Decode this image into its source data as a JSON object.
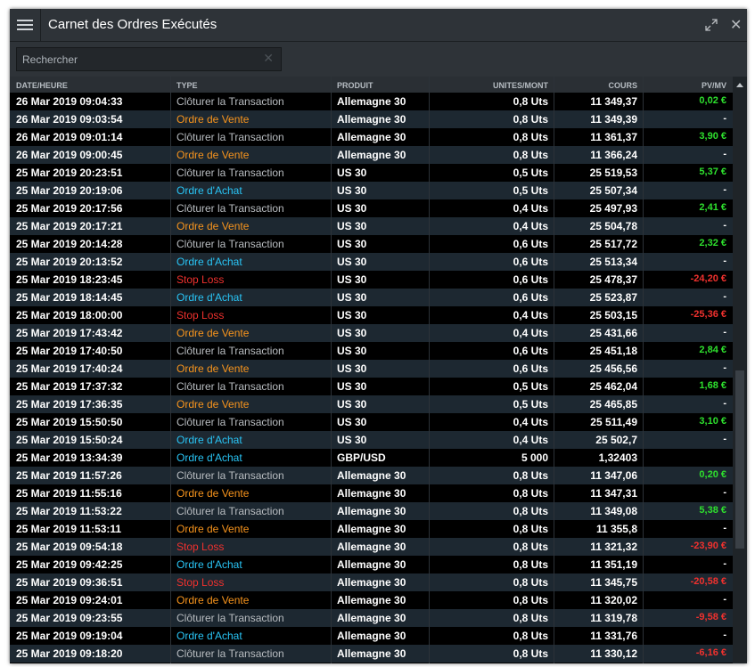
{
  "header": {
    "title": "Carnet des Ordres Exécutés"
  },
  "search": {
    "placeholder": "Rechercher"
  },
  "table": {
    "columns": [
      "DATE/HEURE",
      "TYPE",
      "PRODUIT",
      "UNITES/MONT",
      "COURS",
      "PV/MV"
    ],
    "rows": [
      {
        "date": "26 Mar 2019 09:04:33",
        "type": "Clôturer la Transaction",
        "type_color": "#b8bcc0",
        "product": "Allemagne 30",
        "units": "0,8 Uts",
        "price": "11 349,37",
        "pnl": "0,02 €",
        "pnl_color": "#2ee02e"
      },
      {
        "date": "26 Mar 2019 09:03:54",
        "type": "Ordre de Vente",
        "type_color": "#f7941d",
        "product": "Allemagne 30",
        "units": "0,8 Uts",
        "price": "11 349,39",
        "pnl": "-",
        "pnl_color": "#ffffff"
      },
      {
        "date": "26 Mar 2019 09:01:14",
        "type": "Clôturer la Transaction",
        "type_color": "#b8bcc0",
        "product": "Allemagne 30",
        "units": "0,8 Uts",
        "price": "11 361,37",
        "pnl": "3,90 €",
        "pnl_color": "#2ee02e"
      },
      {
        "date": "26 Mar 2019 09:00:45",
        "type": "Ordre de Vente",
        "type_color": "#f7941d",
        "product": "Allemagne 30",
        "units": "0,8 Uts",
        "price": "11 366,24",
        "pnl": "-",
        "pnl_color": "#ffffff"
      },
      {
        "date": "25 Mar 2019 20:23:51",
        "type": "Clôturer la Transaction",
        "type_color": "#b8bcc0",
        "product": "US 30",
        "units": "0,5 Uts",
        "price": "25 519,53",
        "pnl": "5,37 €",
        "pnl_color": "#2ee02e"
      },
      {
        "date": "25 Mar 2019 20:19:06",
        "type": "Ordre d'Achat",
        "type_color": "#29c5f6",
        "product": "US 30",
        "units": "0,5 Uts",
        "price": "25 507,34",
        "pnl": "-",
        "pnl_color": "#ffffff"
      },
      {
        "date": "25 Mar 2019 20:17:56",
        "type": "Clôturer la Transaction",
        "type_color": "#b8bcc0",
        "product": "US 30",
        "units": "0,4 Uts",
        "price": "25 497,93",
        "pnl": "2,41 €",
        "pnl_color": "#2ee02e"
      },
      {
        "date": "25 Mar 2019 20:17:21",
        "type": "Ordre de Vente",
        "type_color": "#f7941d",
        "product": "US 30",
        "units": "0,4 Uts",
        "price": "25 504,78",
        "pnl": "-",
        "pnl_color": "#ffffff"
      },
      {
        "date": "25 Mar 2019 20:14:28",
        "type": "Clôturer la Transaction",
        "type_color": "#b8bcc0",
        "product": "US 30",
        "units": "0,6 Uts",
        "price": "25 517,72",
        "pnl": "2,32 €",
        "pnl_color": "#2ee02e"
      },
      {
        "date": "25 Mar 2019 20:13:52",
        "type": "Ordre d'Achat",
        "type_color": "#29c5f6",
        "product": "US 30",
        "units": "0,6 Uts",
        "price": "25 513,34",
        "pnl": "-",
        "pnl_color": "#ffffff"
      },
      {
        "date": "25 Mar 2019 18:23:45",
        "type": "Stop Loss",
        "type_color": "#f0312e",
        "product": "US 30",
        "units": "0,6 Uts",
        "price": "25 478,37",
        "pnl": "-24,20 €",
        "pnl_color": "#f0312e"
      },
      {
        "date": "25 Mar 2019 18:14:45",
        "type": "Ordre d'Achat",
        "type_color": "#29c5f6",
        "product": "US 30",
        "units": "0,6 Uts",
        "price": "25 523,87",
        "pnl": "-",
        "pnl_color": "#ffffff"
      },
      {
        "date": "25 Mar 2019 18:00:00",
        "type": "Stop Loss",
        "type_color": "#f0312e",
        "product": "US 30",
        "units": "0,4 Uts",
        "price": "25 503,15",
        "pnl": "-25,36 €",
        "pnl_color": "#f0312e"
      },
      {
        "date": "25 Mar 2019 17:43:42",
        "type": "Ordre de Vente",
        "type_color": "#f7941d",
        "product": "US 30",
        "units": "0,4 Uts",
        "price": "25 431,66",
        "pnl": "-",
        "pnl_color": "#ffffff"
      },
      {
        "date": "25 Mar 2019 17:40:50",
        "type": "Clôturer la Transaction",
        "type_color": "#b8bcc0",
        "product": "US 30",
        "units": "0,6 Uts",
        "price": "25 451,18",
        "pnl": "2,84 €",
        "pnl_color": "#2ee02e"
      },
      {
        "date": "25 Mar 2019 17:40:24",
        "type": "Ordre de Vente",
        "type_color": "#f7941d",
        "product": "US 30",
        "units": "0,6 Uts",
        "price": "25 456,56",
        "pnl": "-",
        "pnl_color": "#ffffff"
      },
      {
        "date": "25 Mar 2019 17:37:32",
        "type": "Clôturer la Transaction",
        "type_color": "#b8bcc0",
        "product": "US 30",
        "units": "0,5 Uts",
        "price": "25 462,04",
        "pnl": "1,68 €",
        "pnl_color": "#2ee02e"
      },
      {
        "date": "25 Mar 2019 17:36:35",
        "type": "Ordre de Vente",
        "type_color": "#f7941d",
        "product": "US 30",
        "units": "0,5 Uts",
        "price": "25 465,85",
        "pnl": "-",
        "pnl_color": "#ffffff"
      },
      {
        "date": "25 Mar 2019 15:50:50",
        "type": "Clôturer la Transaction",
        "type_color": "#b8bcc0",
        "product": "US 30",
        "units": "0,4 Uts",
        "price": "25 511,49",
        "pnl": "3,10 €",
        "pnl_color": "#2ee02e"
      },
      {
        "date": "25 Mar 2019 15:50:24",
        "type": "Ordre d'Achat",
        "type_color": "#29c5f6",
        "product": "US 30",
        "units": "0,4 Uts",
        "price": "25 502,7",
        "pnl": "-",
        "pnl_color": "#ffffff"
      },
      {
        "date": "25 Mar 2019 13:34:39",
        "type": "Ordre d'Achat",
        "type_color": "#29c5f6",
        "product": "GBP/USD",
        "units": "5 000",
        "price": "1,32403",
        "pnl": null,
        "pnl_color": "#ffffff"
      },
      {
        "date": "25 Mar 2019 11:57:26",
        "type": "Clôturer la Transaction",
        "type_color": "#b8bcc0",
        "product": "Allemagne 30",
        "units": "0,8 Uts",
        "price": "11 347,06",
        "pnl": "0,20 €",
        "pnl_color": "#2ee02e"
      },
      {
        "date": "25 Mar 2019 11:55:16",
        "type": "Ordre de Vente",
        "type_color": "#f7941d",
        "product": "Allemagne 30",
        "units": "0,8 Uts",
        "price": "11 347,31",
        "pnl": "-",
        "pnl_color": "#ffffff"
      },
      {
        "date": "25 Mar 2019 11:53:22",
        "type": "Clôturer la Transaction",
        "type_color": "#b8bcc0",
        "product": "Allemagne 30",
        "units": "0,8 Uts",
        "price": "11 349,08",
        "pnl": "5,38 €",
        "pnl_color": "#2ee02e"
      },
      {
        "date": "25 Mar 2019 11:53:11",
        "type": "Ordre de Vente",
        "type_color": "#f7941d",
        "product": "Allemagne 30",
        "units": "0,8 Uts",
        "price": "11 355,8",
        "pnl": "-",
        "pnl_color": "#ffffff"
      },
      {
        "date": "25 Mar 2019 09:54:18",
        "type": "Stop Loss",
        "type_color": "#f0312e",
        "product": "Allemagne 30",
        "units": "0,8 Uts",
        "price": "11 321,32",
        "pnl": "-23,90 €",
        "pnl_color": "#f0312e"
      },
      {
        "date": "25 Mar 2019 09:42:25",
        "type": "Ordre d'Achat",
        "type_color": "#29c5f6",
        "product": "Allemagne 30",
        "units": "0,8 Uts",
        "price": "11 351,19",
        "pnl": "-",
        "pnl_color": "#ffffff"
      },
      {
        "date": "25 Mar 2019 09:36:51",
        "type": "Stop Loss",
        "type_color": "#f0312e",
        "product": "Allemagne 30",
        "units": "0,8 Uts",
        "price": "11 345,75",
        "pnl": "-20,58 €",
        "pnl_color": "#f0312e"
      },
      {
        "date": "25 Mar 2019 09:24:01",
        "type": "Ordre de Vente",
        "type_color": "#f7941d",
        "product": "Allemagne 30",
        "units": "0,8 Uts",
        "price": "11 320,02",
        "pnl": "-",
        "pnl_color": "#ffffff"
      },
      {
        "date": "25 Mar 2019 09:23:55",
        "type": "Clôturer la Transaction",
        "type_color": "#b8bcc0",
        "product": "Allemagne 30",
        "units": "0,8 Uts",
        "price": "11 319,78",
        "pnl": "-9,58 €",
        "pnl_color": "#f0312e"
      },
      {
        "date": "25 Mar 2019 09:19:04",
        "type": "Ordre d'Achat",
        "type_color": "#29c5f6",
        "product": "Allemagne 30",
        "units": "0,8 Uts",
        "price": "11 331,76",
        "pnl": "-",
        "pnl_color": "#ffffff"
      },
      {
        "date": "25 Mar 2019 09:18:20",
        "type": "Clôturer la Transaction",
        "type_color": "#b8bcc0",
        "product": "Allemagne 30",
        "units": "0,8 Uts",
        "price": "11 330,12",
        "pnl": "-6,16 €",
        "pnl_color": "#f0312e"
      }
    ]
  }
}
